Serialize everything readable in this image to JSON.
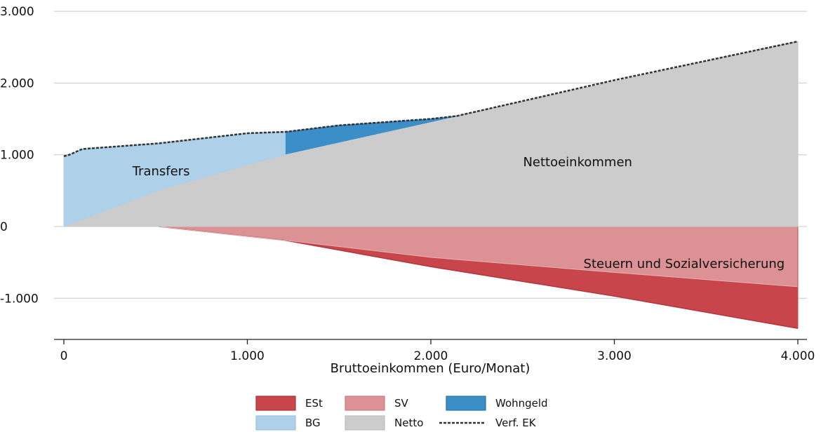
{
  "chart_data": {
    "type": "area",
    "xlabel": "Bruttoeinkommen (Euro/Monat)",
    "ylabel": "",
    "xlim": [
      0,
      4000
    ],
    "ylim": [
      -1550,
      3000
    ],
    "x_ticks": [
      0,
      1000,
      2000,
      3000,
      4000
    ],
    "x_tick_labels": [
      "0",
      "1.000",
      "2.000",
      "3.000",
      "4.000"
    ],
    "y_ticks": [
      -1000,
      0,
      1000,
      2000,
      3000
    ],
    "y_tick_labels": [
      "-1.000",
      "0",
      "1.000",
      "2.000",
      "3.000"
    ],
    "grid": "horizontal",
    "legend_position": "bottom",
    "colors": {
      "ESt": "#c8464b",
      "SV": "#dc9294",
      "Wohngeld": "#3a8fc9",
      "BG": "#aed0e8",
      "Netto": "#cccccc",
      "Verf_EK": "#333333"
    },
    "series": [
      {
        "name": "Netto",
        "x": [
          0,
          520,
          1210,
          2140,
          4000
        ],
        "y": [
          0,
          510,
          1010,
          1540,
          2580
        ]
      },
      {
        "name": "BG",
        "x": [
          0,
          0,
          30,
          100,
          520,
          1000,
          1210,
          1210,
          520,
          0
        ],
        "y": [
          0,
          980,
          1000,
          1080,
          1160,
          1300,
          1320,
          1010,
          510,
          0
        ]
      },
      {
        "name": "Wohngeld",
        "x": [
          1210,
          1500,
          2000,
          2140,
          1210
        ],
        "y": [
          1320,
          1410,
          1500,
          1540,
          1010
        ]
      },
      {
        "name": "SV",
        "x": [
          520,
          1200,
          2000,
          3000,
          4000
        ],
        "y": [
          0,
          -190,
          -430,
          -640,
          -840
        ]
      },
      {
        "name": "ESt",
        "x": [
          520,
          1200,
          2000,
          3000,
          4000
        ],
        "y": [
          0,
          -190,
          -560,
          -970,
          -1420
        ]
      },
      {
        "name": "Verf. EK",
        "x": [
          0,
          30,
          100,
          520,
          1000,
          1210,
          1500,
          2000,
          2140,
          3000,
          4000
        ],
        "y": [
          980,
          1000,
          1080,
          1160,
          1300,
          1320,
          1410,
          1500,
          1540,
          2040,
          2580
        ]
      }
    ],
    "annotations": [
      {
        "text": "Transfers",
        "x": 530,
        "y": 770
      },
      {
        "text": "Nettoeinkommen",
        "x": 2800,
        "y": 900
      },
      {
        "text": "Steuern und Sozialversicherung",
        "x": 3380,
        "y": -520
      }
    ],
    "legend": [
      {
        "label": "ESt",
        "kind": "fill",
        "key": "ESt"
      },
      {
        "label": "SV",
        "kind": "fill",
        "key": "SV"
      },
      {
        "label": "Wohngeld",
        "kind": "fill",
        "key": "Wohngeld"
      },
      {
        "label": "BG",
        "kind": "fill",
        "key": "BG"
      },
      {
        "label": "Netto",
        "kind": "fill",
        "key": "Netto"
      },
      {
        "label": "Verf. EK",
        "kind": "dash",
        "key": "Verf_EK"
      }
    ]
  }
}
